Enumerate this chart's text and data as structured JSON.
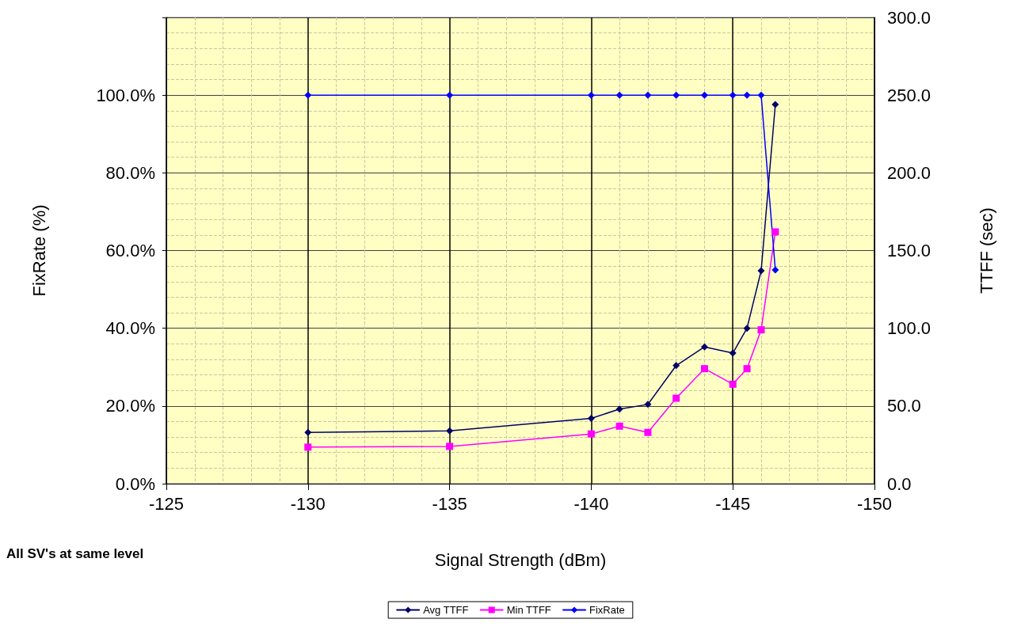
{
  "chart_data": {
    "type": "line",
    "xlabel": "Signal Strength (dBm)",
    "ylabel": "FixRate (%)",
    "y2label": "TTFF (sec)",
    "annotations": [
      "All SV's at same level"
    ],
    "x": [
      -130,
      -135,
      -140,
      -141,
      -142,
      -143,
      -144,
      -145,
      -145.5,
      -146,
      -146.5
    ],
    "series": [
      {
        "name": "Avg TTFF",
        "color": "#000066",
        "axis": "y2",
        "marker": "diamond",
        "values": [
          33,
          34,
          42,
          48,
          51,
          76,
          88,
          84,
          100,
          137,
          244
        ]
      },
      {
        "name": "Min TTFF",
        "color": "#ff00ff",
        "axis": "y2",
        "marker": "square",
        "values": [
          23.5,
          24,
          32,
          37,
          33,
          55,
          74,
          64,
          74,
          99,
          162
        ]
      },
      {
        "name": "FixRate",
        "color": "#0000ff",
        "marker": "diamond",
        "values": [
          100,
          100,
          100,
          100,
          100,
          100,
          100,
          100,
          100,
          100,
          55
        ]
      }
    ],
    "xlim": [
      -125,
      -150
    ],
    "xticks": [
      -125,
      -130,
      -135,
      -140,
      -145,
      -150
    ],
    "ylim": [
      0,
      120
    ],
    "yticks": [
      {
        "value": 0,
        "label": "0.0%"
      },
      {
        "value": 20,
        "label": "20.0%"
      },
      {
        "value": 40,
        "label": "40.0%"
      },
      {
        "value": 60,
        "label": "60.0%"
      },
      {
        "value": 80,
        "label": "80.0%"
      },
      {
        "value": 100,
        "label": "100.0%"
      },
      {
        "value": 120,
        "label": null
      }
    ],
    "y2lim": [
      0,
      300
    ],
    "y2ticks": [
      {
        "value": 0,
        "label": "0.0"
      },
      {
        "value": 50,
        "label": "50.0"
      },
      {
        "value": 100,
        "label": "100.0"
      },
      {
        "value": 150,
        "label": "150.0"
      },
      {
        "value": 200,
        "label": "200.0"
      },
      {
        "value": 250,
        "label": "250.0"
      },
      {
        "value": 300,
        "label": "300.0"
      }
    ],
    "grid": true,
    "legend": "bottom",
    "line_style": "solid"
  }
}
